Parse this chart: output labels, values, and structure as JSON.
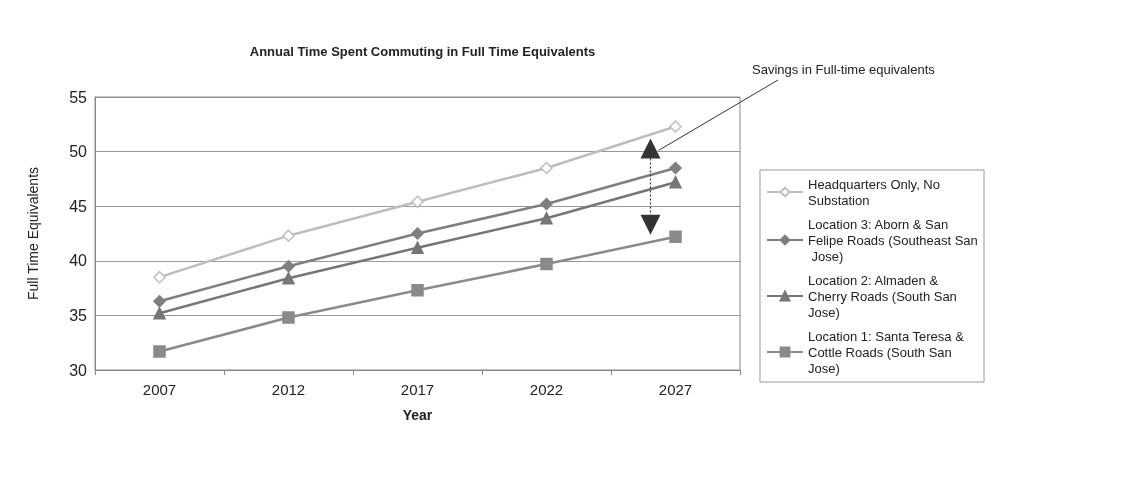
{
  "chart_data": {
    "type": "line",
    "title": "Annual Time Spent Commuting in Full Time Equivalents",
    "xlabel": "Year",
    "ylabel": "Full Time Equivalents",
    "categories": [
      "2007",
      "2012",
      "2017",
      "2022",
      "2027"
    ],
    "series": [
      {
        "name": "Headquarters Only, No Substation",
        "color": "#bdbdbd",
        "marker": "diamond",
        "values": [
          38.5,
          42.3,
          45.4,
          48.5,
          52.3
        ]
      },
      {
        "name": "Location 3: Aborn & San Felipe Roads (Southeast San Jose)",
        "color": "#7f7f7f",
        "marker": "diamond",
        "values": [
          36.3,
          39.5,
          42.5,
          45.2,
          48.5
        ]
      },
      {
        "name": "Location 2: Almaden & Cherry Roads (South San Jose)",
        "color": "#767676",
        "marker": "triangle",
        "values": [
          35.2,
          38.4,
          41.2,
          43.9,
          47.2
        ]
      },
      {
        "name": "Location 1: Santa Teresa & Cottle Roads (South San Jose)",
        "color": "#8a8a8a",
        "marker": "square",
        "values": [
          31.7,
          34.8,
          37.3,
          39.7,
          42.2
        ]
      }
    ],
    "ylim": [
      30,
      55
    ],
    "yticks": [
      30,
      35,
      40,
      45,
      50,
      55
    ],
    "grid": "y",
    "legend": "right",
    "annotations": [
      "Savings in Full-time equivalents"
    ]
  }
}
